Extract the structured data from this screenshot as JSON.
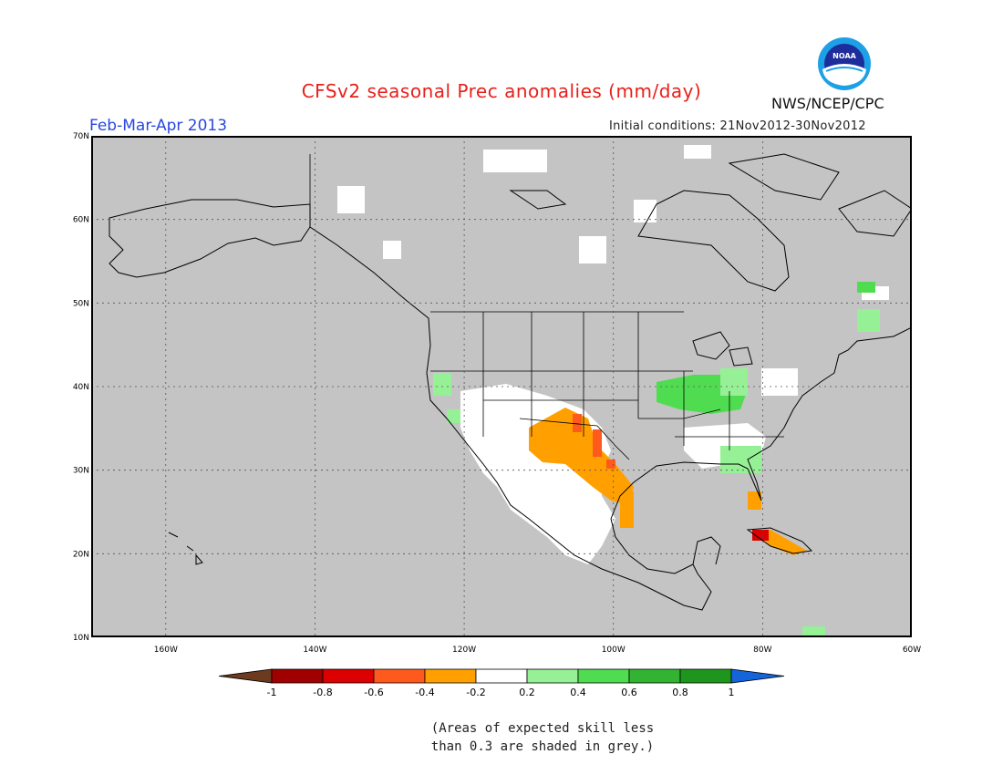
{
  "title": "CFSv2 seasonal Prec anomalies (mm/day)",
  "season": "Feb-Mar-Apr 2013",
  "initial_conditions": "Initial conditions: 21Nov2012-30Nov2012",
  "org": "NWS/NCEP/CPC",
  "logo": {
    "icon": "noaa-logo-icon",
    "text": "NOAA"
  },
  "map": {
    "lon_range": [
      -170,
      -60
    ],
    "lat_range": [
      10,
      70
    ],
    "lat_labels": [
      "10N",
      "20N",
      "30N",
      "40N",
      "50N",
      "60N",
      "70N"
    ],
    "lon_labels": [
      "160W",
      "140W",
      "120W",
      "100W",
      "80W",
      "60W"
    ],
    "colors": {
      "grey": "#c4c4c4",
      "white": "#ffffff"
    }
  },
  "colorbar": {
    "ticks": [
      "-1",
      "-0.8",
      "-0.6",
      "-0.4",
      "-0.2",
      "0.2",
      "0.4",
      "0.6",
      "0.8",
      "1"
    ],
    "colors": [
      "#6b3a1f",
      "#a00000",
      "#dc0000",
      "#ff5a1e",
      "#ffa000",
      "#ffffff",
      "#96f096",
      "#50dc50",
      "#32b432",
      "#1e961e",
      "#1464dc"
    ]
  },
  "note": {
    "line1": "(Areas of expected skill less",
    "line2": "than 0.3 are shaded in grey.)"
  }
}
